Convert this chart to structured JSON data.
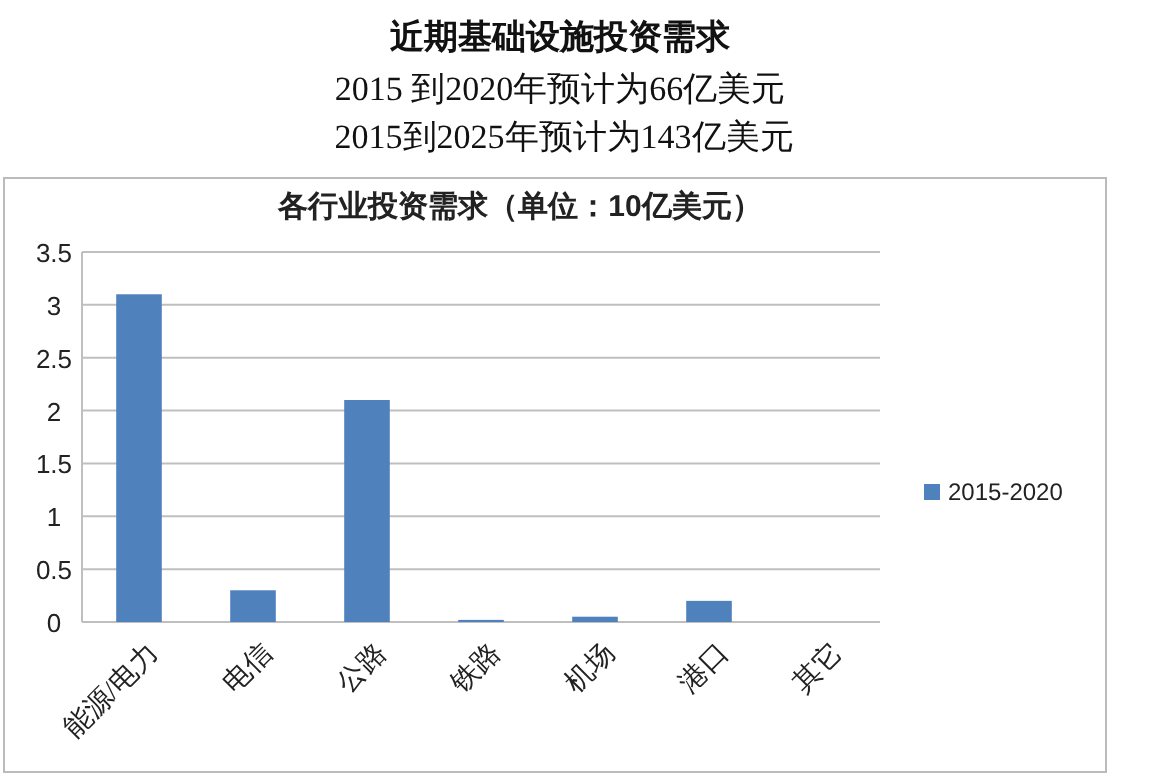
{
  "chart_data": {
    "type": "bar",
    "title": "近期基础设施投资需求",
    "subtitle": "2015 到2020年预计为66亿美元",
    "annotations": [
      "2015到2025年预计为143亿美元",
      "各行业投资需求（单位：10亿美元）"
    ],
    "categories": [
      "能源/电力",
      "电信",
      "公路",
      "铁路",
      "机场",
      "港口",
      "其它"
    ],
    "series": [
      {
        "name": "2015-2020",
        "color": "#4f81bd",
        "values": [
          3.1,
          0.3,
          2.1,
          0.02,
          0.05,
          0.2,
          0
        ]
      }
    ],
    "ylim": [
      0,
      3.5
    ],
    "yticks": [
      0,
      0.5,
      1,
      1.5,
      2,
      2.5,
      3,
      3.5
    ],
    "grid": "y",
    "legend": "right"
  }
}
